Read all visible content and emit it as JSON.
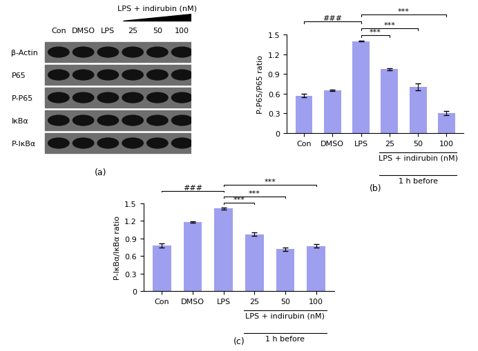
{
  "blot": {
    "panel": "(a)",
    "treatment_label": "LPS + indirubin (nM)",
    "lanes": [
      "Con",
      "DMSO",
      "LPS",
      "25",
      "50",
      "100"
    ],
    "rows": [
      "β-Actin",
      "P65",
      "P-P65",
      "IκBα",
      "P-IκBα"
    ]
  },
  "chart_data": [
    {
      "type": "bar",
      "panel": "(b)",
      "y_label": "P-P65/P65 ratio",
      "categories": [
        "Con",
        "DMSO",
        "LPS",
        "25",
        "50",
        "100"
      ],
      "values": [
        0.57,
        0.65,
        1.4,
        0.97,
        0.7,
        0.3
      ],
      "errors": [
        0.03,
        0.01,
        0.01,
        0.02,
        0.05,
        0.03
      ],
      "color": "#9f9ff0",
      "ylim": [
        0,
        1.5
      ],
      "yticks": [
        0,
        0.3,
        0.6,
        0.9,
        1.2,
        1.5
      ],
      "grid": false,
      "annotations": [
        {
          "text": "***",
          "from": "LPS",
          "to": "25"
        },
        {
          "text": "***",
          "from": "LPS",
          "to": "50"
        },
        {
          "text": "###",
          "from": "Con",
          "to": "LPS"
        },
        {
          "text": "***",
          "from": "LPS",
          "to": "100"
        }
      ],
      "group_labels": [
        {
          "text": "LPS + indirubin (nM)",
          "from": "25",
          "to": "100"
        },
        {
          "text": "1 h before",
          "from": "25",
          "to": "100"
        }
      ]
    },
    {
      "type": "bar",
      "panel": "(c)",
      "y_label": "P-IκBα/IκBα ratio",
      "categories": [
        "Con",
        "DMSO",
        "LPS",
        "25",
        "50",
        "100"
      ],
      "values": [
        0.78,
        1.18,
        1.41,
        0.97,
        0.72,
        0.77
      ],
      "errors": [
        0.03,
        0.01,
        0.02,
        0.03,
        0.03,
        0.03
      ],
      "color": "#9f9ff0",
      "ylim": [
        0,
        1.5
      ],
      "yticks": [
        0,
        0.3,
        0.6,
        0.9,
        1.2,
        1.5
      ],
      "grid": false,
      "annotations": [
        {
          "text": "***",
          "from": "LPS",
          "to": "25"
        },
        {
          "text": "***",
          "from": "LPS",
          "to": "50"
        },
        {
          "text": "###",
          "from": "Con",
          "to": "LPS"
        },
        {
          "text": "***",
          "from": "LPS",
          "to": "100"
        }
      ],
      "group_labels": [
        {
          "text": "LPS + indirubin (nM)",
          "from": "25",
          "to": "100"
        },
        {
          "text": "1 h before",
          "from": "25",
          "to": "100"
        }
      ]
    }
  ]
}
